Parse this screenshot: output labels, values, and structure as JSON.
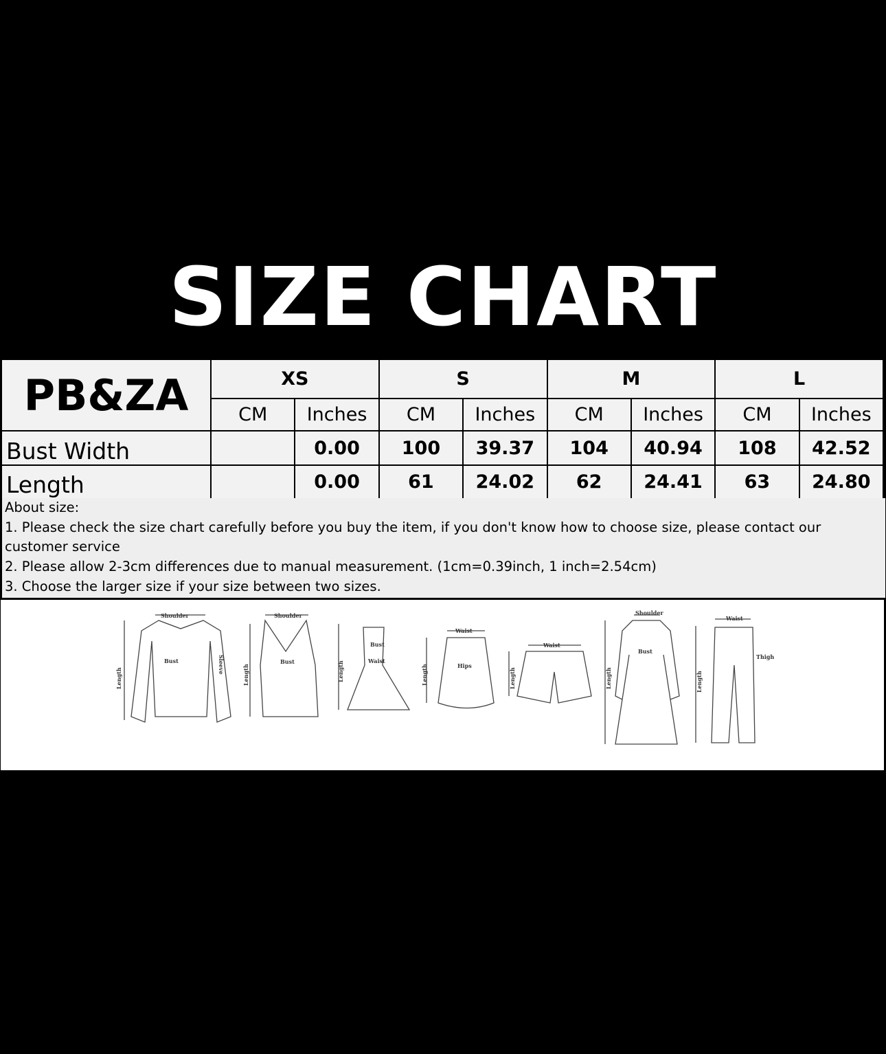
{
  "title": "SIZE CHART",
  "table": {
    "brand": "PB&ZA",
    "sizes": [
      "XS",
      "S",
      "M",
      "L"
    ],
    "units": [
      "CM",
      "Inches"
    ],
    "rows": [
      {
        "label": "Bust Width",
        "values": [
          "",
          "0.00",
          "100",
          "39.37",
          "104",
          "40.94",
          "108",
          "42.52"
        ]
      },
      {
        "label": "Length",
        "values": [
          "",
          "0.00",
          "61",
          "24.02",
          "62",
          "24.41",
          "63",
          "24.80"
        ]
      }
    ]
  },
  "notes": {
    "heading": "About size:",
    "lines": [
      "1. Please check the size chart carefully before you buy the item, if you don't know how to choose size, please contact our customer service",
      "2. Please allow 2-3cm differences due to manual measurement.  (1cm=0.39inch, 1 inch=2.54cm)",
      "3. Choose the larger size if your size between two sizes."
    ]
  },
  "illustrations": {
    "labels": {
      "shoulder": "Shoulder",
      "bust": "Bust",
      "length": "Length",
      "sleeve": "Sleeve",
      "waist": "Waist",
      "hips": "Hips",
      "thigh": "Thigh"
    }
  }
}
